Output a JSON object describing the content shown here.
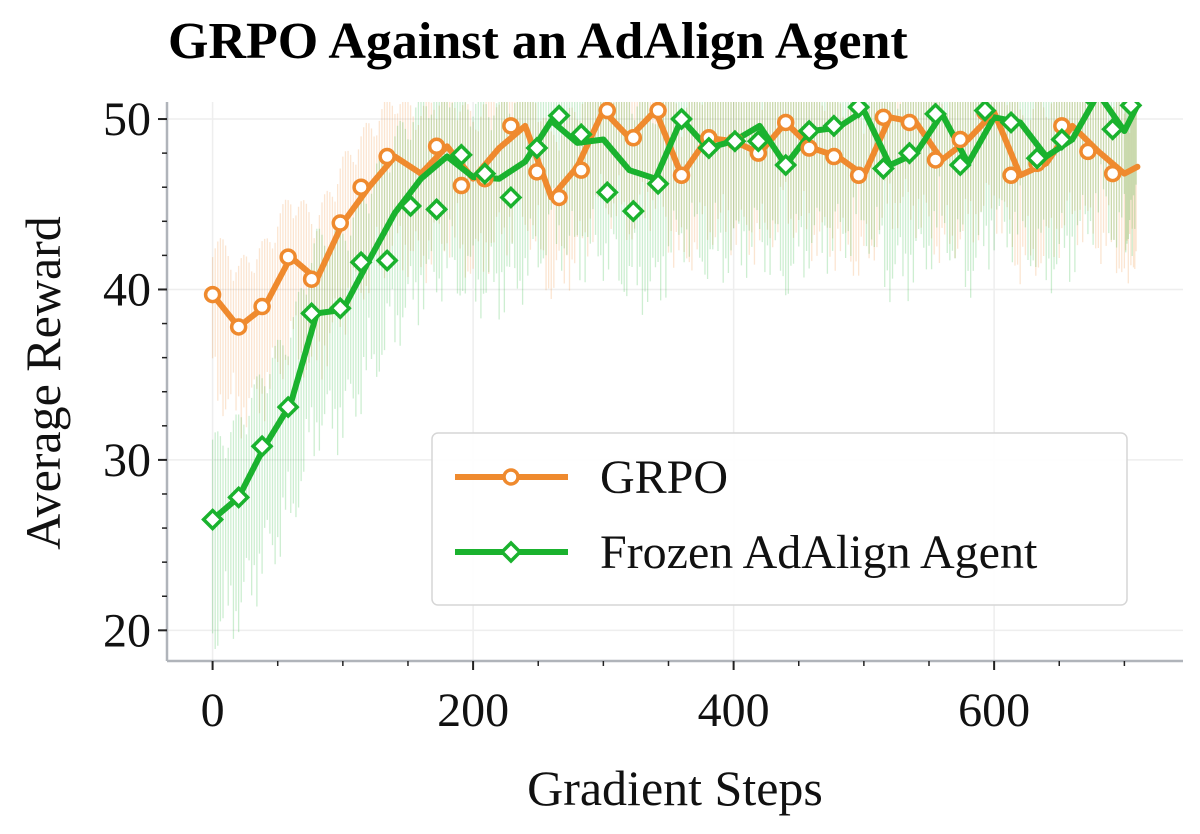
{
  "chart_data": {
    "type": "line",
    "title": "GRPO Against an AdAlign Agent",
    "xlabel": "Gradient Steps",
    "ylabel": "Average Reward",
    "xlim": [
      -35,
      745
    ],
    "ylim": [
      18.2,
      51
    ],
    "xticks": [
      0,
      200,
      400,
      600
    ],
    "yticks": [
      20,
      30,
      40,
      50
    ],
    "grid": true,
    "legend_position": "lower-right",
    "series": [
      {
        "name": "GRPO",
        "color": "#ef8a2e",
        "marker": "circle",
        "x": [
          0,
          20,
          40,
          60,
          80,
          100,
          120,
          140,
          160,
          180,
          200,
          220,
          240,
          260,
          280,
          300,
          320,
          340,
          360,
          380,
          400,
          420,
          440,
          460,
          480,
          500,
          520,
          540,
          560,
          580,
          600,
          620,
          640,
          660,
          680,
          700,
          710
        ],
        "y": [
          39.7,
          37.8,
          39.0,
          41.9,
          40.6,
          43.9,
          46.0,
          47.8,
          46.8,
          48.4,
          46.5,
          48.3,
          49.6,
          45.4,
          47.2,
          50.5,
          48.9,
          50.5,
          46.7,
          48.9,
          48.7,
          48.0,
          49.8,
          48.3,
          47.8,
          46.7,
          50.1,
          49.8,
          47.6,
          48.8,
          50.4,
          46.7,
          47.4,
          49.6,
          48.1,
          46.8,
          47.2
        ],
        "markers_x": [
          0,
          20,
          38,
          58,
          76,
          98,
          114,
          134,
          172,
          191,
          209,
          229,
          249,
          266,
          283,
          303,
          323,
          342,
          360,
          381,
          401,
          419,
          440,
          458,
          477,
          496,
          515,
          535,
          555,
          574,
          593,
          613,
          633,
          652,
          672,
          691
        ],
        "markers_y": [
          39.7,
          37.8,
          39.0,
          41.9,
          40.6,
          43.9,
          46.0,
          47.8,
          48.4,
          46.1,
          46.5,
          49.6,
          46.9,
          45.4,
          47.0,
          50.5,
          48.9,
          50.5,
          46.7,
          48.9,
          48.7,
          48.0,
          49.8,
          48.3,
          47.8,
          46.7,
          50.1,
          49.8,
          47.6,
          48.8,
          50.4,
          46.7,
          47.4,
          49.6,
          48.1,
          46.8
        ]
      },
      {
        "name": "Frozen AdAlign Agent",
        "color": "#1ab22e",
        "marker": "diamond",
        "x": [
          0,
          20,
          40,
          60,
          80,
          100,
          120,
          140,
          160,
          180,
          200,
          220,
          240,
          260,
          280,
          300,
          320,
          340,
          360,
          380,
          400,
          420,
          440,
          460,
          480,
          500,
          520,
          540,
          560,
          580,
          600,
          620,
          640,
          660,
          680,
          700,
          710
        ],
        "y": [
          26.5,
          27.8,
          30.8,
          33.3,
          38.6,
          38.8,
          41.7,
          44.5,
          46.5,
          47.8,
          46.6,
          46.5,
          47.5,
          49.9,
          48.6,
          48.8,
          47.0,
          46.5,
          50.0,
          48.3,
          48.7,
          49.6,
          47.3,
          49.3,
          49.5,
          50.5,
          47.3,
          48.0,
          50.3,
          47.4,
          50.1,
          49.8,
          47.8,
          48.8,
          51.5,
          49.3,
          50.8
        ],
        "markers_x": [
          0,
          20,
          38,
          58,
          76,
          98,
          114,
          134,
          152,
          172,
          191,
          209,
          229,
          249,
          266,
          283,
          303,
          323,
          342,
          360,
          381,
          401,
          419,
          440,
          458,
          477,
          496,
          515,
          535,
          555,
          574,
          593,
          613,
          633,
          652,
          672,
          691,
          705
        ],
        "markers_y": [
          26.5,
          27.8,
          30.8,
          33.1,
          38.6,
          38.9,
          41.6,
          41.7,
          44.9,
          44.7,
          47.9,
          46.8,
          45.4,
          48.3,
          50.2,
          49.1,
          45.7,
          44.6,
          46.2,
          50.0,
          48.3,
          48.7,
          48.7,
          47.3,
          49.3,
          49.6,
          50.7,
          47.1,
          48.0,
          50.3,
          47.3,
          50.5,
          49.8,
          47.7,
          48.8,
          51.5,
          49.4,
          50.8
        ]
      }
    ]
  }
}
